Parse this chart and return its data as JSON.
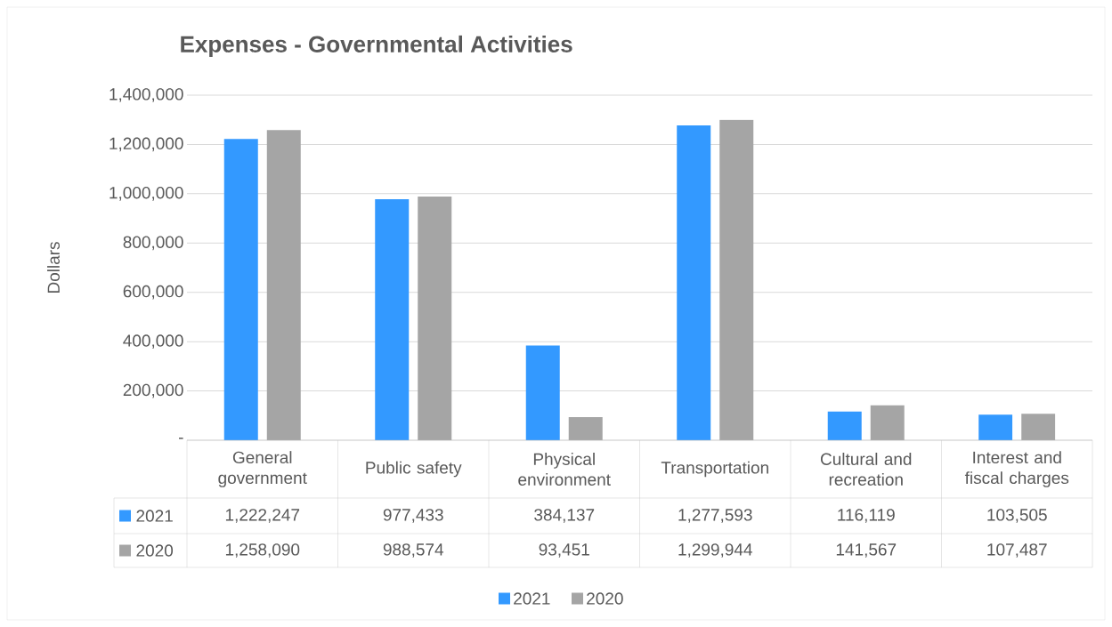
{
  "chart_data": {
    "type": "bar",
    "title": "Expenses - Governmental Activities",
    "ylabel": "Dollars",
    "categories": [
      "General government",
      "Public safety",
      "Physical environment",
      "Transportation",
      "Cultural and recreation",
      "Interest and fiscal charges"
    ],
    "series": [
      {
        "name": "2021",
        "color": "#3399ff",
        "values": [
          1222247,
          977433,
          384137,
          1277593,
          116119,
          103505
        ],
        "value_labels": [
          "1,222,247",
          "977,433",
          "384,137",
          "1,277,593",
          "116,119",
          "103,505"
        ]
      },
      {
        "name": "2020",
        "color": "#a5a5a5",
        "values": [
          1258090,
          988574,
          93451,
          1299944,
          141567,
          107487
        ],
        "value_labels": [
          "1,258,090",
          "988,574",
          "93,451",
          "1,299,944",
          "141,567",
          "107,487"
        ]
      }
    ],
    "ylim": [
      0,
      1400000
    ],
    "yticks": [
      {
        "value": 0,
        "label": "-"
      },
      {
        "value": 200000,
        "label": "200,000"
      },
      {
        "value": 400000,
        "label": "400,000"
      },
      {
        "value": 600000,
        "label": "600,000"
      },
      {
        "value": 800000,
        "label": "800,000"
      },
      {
        "value": 1000000,
        "label": "1,000,000"
      },
      {
        "value": 1200000,
        "label": "1,200,000"
      },
      {
        "value": 1400000,
        "label": "1,400,000"
      }
    ],
    "grid": "y",
    "legend": "bottom"
  }
}
